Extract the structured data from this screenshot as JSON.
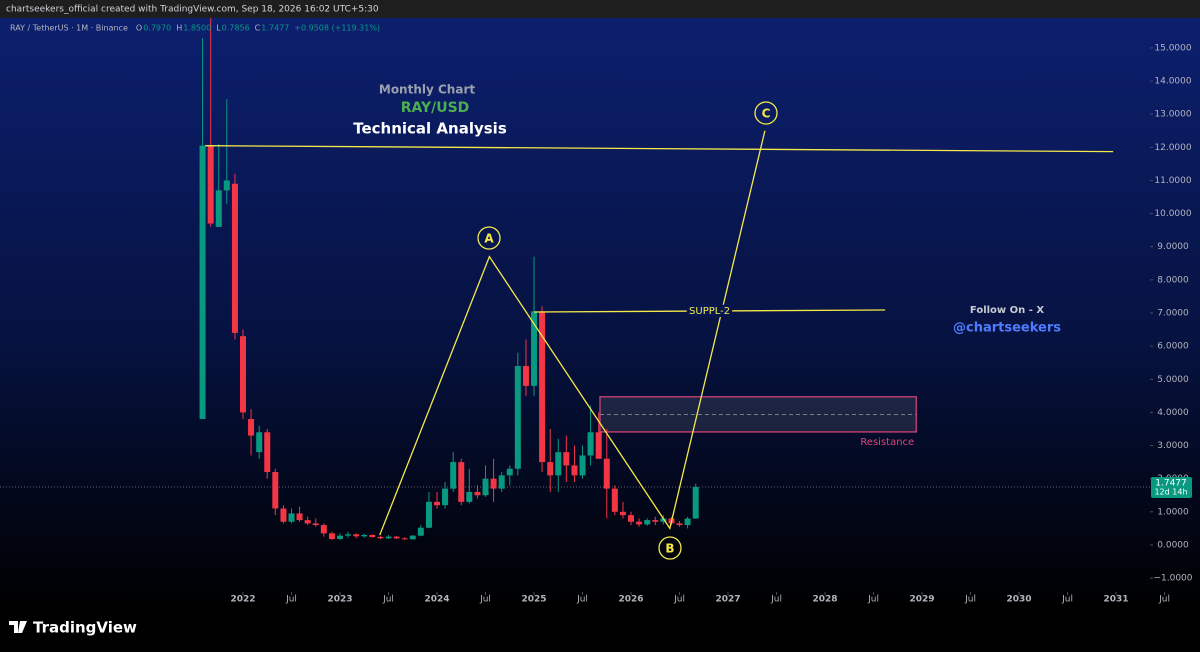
{
  "header": {
    "credit": "chartseekers_official created with TradingView.com, Sep 18, 2026 16:02 UTC+5:30",
    "brand": "TradingView"
  },
  "chart_data": {
    "type": "candlestick",
    "status": {
      "symbol": "RAY / TetherUS · 1M · Binance",
      "items": [
        {
          "key": "O",
          "value": "0.7970"
        },
        {
          "key": "H",
          "value": "1.8500"
        },
        {
          "key": "L",
          "value": "0.7856"
        },
        {
          "key": "C",
          "value": "1.7477"
        }
      ],
      "change": "+0.9508 (+119.31%)"
    },
    "annotations": {
      "subtitle": "Monthly Chart",
      "pair": "RAY/USD",
      "title": "Technical Analysis",
      "follow": "Follow On - X",
      "handle": "@chartseekers",
      "wave_a": "A",
      "wave_b": "B",
      "wave_c": "C"
    },
    "x": [
      2021.583,
      2021.667,
      2021.75,
      2021.833,
      2021.917,
      2022,
      2022.083,
      2022.167,
      2022.25,
      2022.333,
      2022.417,
      2022.5,
      2022.583,
      2022.667,
      2022.75,
      2022.833,
      2022.917,
      2023,
      2023.083,
      2023.167,
      2023.25,
      2023.333,
      2023.417,
      2023.5,
      2023.583,
      2023.667,
      2023.75,
      2023.833,
      2023.917,
      2024,
      2024.083,
      2024.167,
      2024.25,
      2024.333,
      2024.417,
      2024.5,
      2024.583,
      2024.667,
      2024.75,
      2024.833,
      2024.917,
      2025,
      2025.083,
      2025.167,
      2025.25,
      2025.333,
      2025.417,
      2025.5,
      2025.583,
      2025.667,
      2025.75,
      2025.833,
      2025.917,
      2026,
      2026.083,
      2026.167,
      2026.25,
      2026.333,
      2026.417,
      2026.5,
      2026.583,
      2026.667
    ],
    "open": [
      3.8,
      12.05,
      9.6,
      10.7,
      10.9,
      6.3,
      3.8,
      2.8,
      3.4,
      2.2,
      1.1,
      0.7,
      0.95,
      0.75,
      0.65,
      0.6,
      0.35,
      0.18,
      0.28,
      0.32,
      0.26,
      0.3,
      0.24,
      0.2,
      0.25,
      0.2,
      0.17,
      0.28,
      0.52,
      1.3,
      1.2,
      1.7,
      2.5,
      1.3,
      1.6,
      1.5,
      2.0,
      1.7,
      2.1,
      2.3,
      5.4,
      4.8,
      7.05,
      2.5,
      2.1,
      2.8,
      2.4,
      2.1,
      2.7,
      3.4,
      2.6,
      1.7,
      1.0,
      0.9,
      0.7,
      0.62,
      0.75,
      0.7,
      0.8,
      0.65,
      0.6,
      0.797
    ],
    "high": [
      15.3,
      16.0,
      12.1,
      13.45,
      11.2,
      6.5,
      4.1,
      3.6,
      3.5,
      2.3,
      1.2,
      1.1,
      1.15,
      0.85,
      0.8,
      0.65,
      0.4,
      0.35,
      0.4,
      0.35,
      0.34,
      0.32,
      0.28,
      0.3,
      0.27,
      0.23,
      0.3,
      0.6,
      1.6,
      1.6,
      1.9,
      2.8,
      2.6,
      2.3,
      1.8,
      2.4,
      2.6,
      2.2,
      2.4,
      5.8,
      6.2,
      8.7,
      7.2,
      3.5,
      3.2,
      3.3,
      3.0,
      3.0,
      4.2,
      4.0,
      3.5,
      1.8,
      1.3,
      1.0,
      0.8,
      0.8,
      0.85,
      0.9,
      0.85,
      0.72,
      0.85,
      1.85
    ],
    "low": [
      3.8,
      9.6,
      9.6,
      10.3,
      6.2,
      3.8,
      2.7,
      2.6,
      2.0,
      0.9,
      0.65,
      0.65,
      0.7,
      0.6,
      0.55,
      0.25,
      0.15,
      0.16,
      0.22,
      0.2,
      0.22,
      0.22,
      0.18,
      0.18,
      0.18,
      0.15,
      0.16,
      0.26,
      0.5,
      1.1,
      1.1,
      1.6,
      1.2,
      1.25,
      1.4,
      1.45,
      1.3,
      1.6,
      1.8,
      2.1,
      4.5,
      4.5,
      2.2,
      1.6,
      1.6,
      1.9,
      1.9,
      2.0,
      2.4,
      2.6,
      0.8,
      0.9,
      0.8,
      0.6,
      0.55,
      0.58,
      0.6,
      0.62,
      0.6,
      0.55,
      0.5,
      0.7856
    ],
    "close": [
      12.05,
      9.7,
      10.7,
      11.0,
      6.4,
      4.0,
      3.3,
      3.4,
      2.2,
      1.1,
      0.7,
      0.95,
      0.75,
      0.65,
      0.6,
      0.35,
      0.18,
      0.28,
      0.32,
      0.26,
      0.3,
      0.24,
      0.2,
      0.25,
      0.2,
      0.17,
      0.28,
      0.52,
      1.3,
      1.2,
      1.7,
      2.5,
      1.3,
      1.6,
      1.5,
      2.0,
      1.7,
      2.1,
      2.3,
      5.4,
      4.8,
      7.05,
      2.5,
      2.1,
      2.8,
      2.4,
      2.1,
      2.7,
      3.4,
      2.6,
      1.7,
      1.0,
      0.9,
      0.7,
      0.62,
      0.75,
      0.7,
      0.8,
      0.65,
      0.6,
      0.797,
      1.7477
    ],
    "up_color": "#089981",
    "down_color": "#f23645",
    "last_price": {
      "value": 1.7477,
      "label": "1.7477"
    },
    "countdown": "12d 14h",
    "drawings": {
      "color": "#f5e94a",
      "lines": [
        {
          "x": [
            2021.61,
            2030.97
          ],
          "y": [
            12.05,
            11.87
          ]
        },
        {
          "x": [
            2023.41,
            2024.54,
            2026.4,
            2027.38
          ],
          "y": [
            0.3,
            8.7,
            0.5,
            12.5
          ]
        },
        {
          "x": [
            2025.0,
            2028.62
          ],
          "y": [
            7.03,
            7.09
          ],
          "label": "SUPPL-2"
        }
      ],
      "box": {
        "x": [
          2025.68,
          2028.94
        ],
        "y": [
          4.47,
          3.41
        ],
        "mid": 3.94,
        "label": "Resistance",
        "color": "#e0457b"
      }
    },
    "xlim": [
      2019.495,
      2031.35
    ],
    "xticks": [
      2022,
      {
        "value": 2022.5,
        "label": "Jul"
      },
      2023,
      {
        "value": 2023.5,
        "label": "Jul"
      },
      2024,
      {
        "value": 2024.5,
        "label": "Jul"
      },
      2025,
      {
        "value": 2025.5,
        "label": "Jul"
      },
      2026,
      {
        "value": 2026.5,
        "label": "Jul"
      },
      2027,
      {
        "value": 2027.5,
        "label": "Jul"
      },
      2028,
      {
        "value": 2028.5,
        "label": "Jul"
      },
      2029,
      {
        "value": 2029.5,
        "label": "Jul"
      },
      2030,
      {
        "value": 2030.5,
        "label": "Jul"
      },
      2031,
      {
        "value": 2031.5,
        "label": "Jul"
      }
    ],
    "ylim": [
      -1.36,
      15.39
    ],
    "yticks": [
      {
        "value": -1,
        "label": "−1.0000"
      },
      {
        "value": 0,
        "label": "0.0000"
      },
      {
        "value": 1,
        "label": "1.0000"
      },
      {
        "value": 2,
        "label": "2.0000"
      },
      {
        "value": 3,
        "label": "3.0000"
      },
      {
        "value": 4,
        "label": "4.0000"
      },
      {
        "value": 5,
        "label": "5.0000"
      },
      {
        "value": 6,
        "label": "6.0000"
      },
      {
        "value": 7,
        "label": "7.0000"
      },
      {
        "value": 8,
        "label": "8.0000"
      },
      {
        "value": 9,
        "label": "9.0000"
      },
      {
        "value": 10,
        "label": "10.0000"
      },
      {
        "value": 11,
        "label": "11.0000"
      },
      {
        "value": 12,
        "label": "12.0000"
      },
      {
        "value": 13,
        "label": "13.0000"
      },
      {
        "value": 14,
        "label": "14.0000"
      },
      {
        "value": 15,
        "label": "15.0000"
      }
    ]
  }
}
